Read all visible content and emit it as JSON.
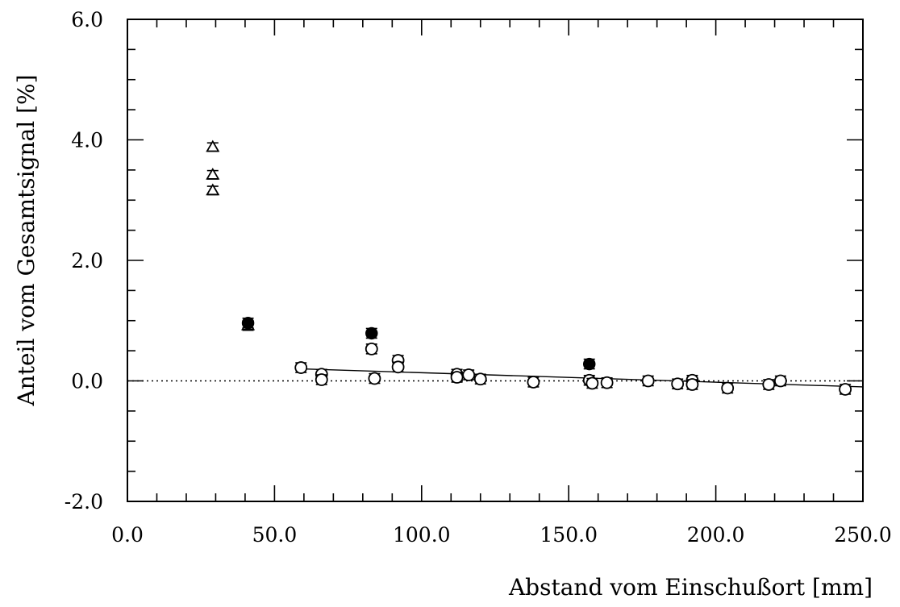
{
  "chart_data": {
    "type": "scatter",
    "title": "",
    "xlabel": "Abstand vom Einschußort [mm]",
    "ylabel": "Anteil vom Gesamtsignal [%]",
    "xlim": [
      0,
      250
    ],
    "ylim": [
      -2,
      6
    ],
    "x_ticks": [
      {
        "value": 0,
        "label": "0.0"
      },
      {
        "value": 50,
        "label": "50.0"
      },
      {
        "value": 100,
        "label": "100.0"
      },
      {
        "value": 150,
        "label": "150.0"
      },
      {
        "value": 200,
        "label": "200.0"
      },
      {
        "value": 250,
        "label": "250.0"
      }
    ],
    "y_ticks": [
      {
        "value": -2,
        "label": "-2.0"
      },
      {
        "value": 0,
        "label": "0.0"
      },
      {
        "value": 2,
        "label": "2.0"
      },
      {
        "value": 4,
        "label": "4.0"
      },
      {
        "value": 6,
        "label": "6.0"
      }
    ],
    "grid": false,
    "series": [
      {
        "marker": "triangle-open",
        "points": [
          {
            "x": 29,
            "y": 3.88,
            "err": 0.07
          },
          {
            "x": 29,
            "y": 3.42,
            "err": 0.07
          },
          {
            "x": 29,
            "y": 3.16,
            "err": 0.07
          },
          {
            "x": 41,
            "y": 0.92,
            "err": 0.08
          }
        ]
      },
      {
        "marker": "circle-filled",
        "points": [
          {
            "x": 41,
            "y": 0.96,
            "err": 0.08
          },
          {
            "x": 83,
            "y": 0.79,
            "err": 0.08
          },
          {
            "x": 157,
            "y": 0.28,
            "err": 0.08
          }
        ]
      },
      {
        "marker": "circle-open",
        "points": [
          {
            "x": 59,
            "y": 0.22,
            "err": 0.08
          },
          {
            "x": 66,
            "y": 0.11,
            "err": 0.08
          },
          {
            "x": 66,
            "y": 0.02,
            "err": 0.08
          },
          {
            "x": 83,
            "y": 0.53,
            "err": 0.08
          },
          {
            "x": 84,
            "y": 0.04,
            "err": 0.08
          },
          {
            "x": 92,
            "y": 0.34,
            "err": 0.08
          },
          {
            "x": 92,
            "y": 0.23,
            "err": 0.08
          },
          {
            "x": 112,
            "y": 0.11,
            "err": 0.08
          },
          {
            "x": 112,
            "y": 0.06,
            "err": 0.08
          },
          {
            "x": 116,
            "y": 0.1,
            "err": 0.08
          },
          {
            "x": 120,
            "y": 0.03,
            "err": 0.08
          },
          {
            "x": 138,
            "y": -0.02,
            "err": 0.08
          },
          {
            "x": 157,
            "y": 0.01,
            "err": 0.08
          },
          {
            "x": 158,
            "y": -0.04,
            "err": 0.08
          },
          {
            "x": 163,
            "y": -0.03,
            "err": 0.08
          },
          {
            "x": 177,
            "y": 0.0,
            "err": 0.08
          },
          {
            "x": 187,
            "y": -0.05,
            "err": 0.08
          },
          {
            "x": 192,
            "y": 0.01,
            "err": 0.08
          },
          {
            "x": 192,
            "y": -0.06,
            "err": 0.08
          },
          {
            "x": 204,
            "y": -0.12,
            "err": 0.08
          },
          {
            "x": 218,
            "y": -0.06,
            "err": 0.08
          },
          {
            "x": 222,
            "y": 0.0,
            "err": 0.08
          },
          {
            "x": 244,
            "y": -0.14,
            "err": 0.08
          }
        ]
      }
    ],
    "fit_line": {
      "style": "solid",
      "points": [
        [
          59,
          0.2
        ],
        [
          250,
          -0.1
        ]
      ]
    },
    "reference_line": {
      "style": "dotted",
      "y": 0
    }
  }
}
